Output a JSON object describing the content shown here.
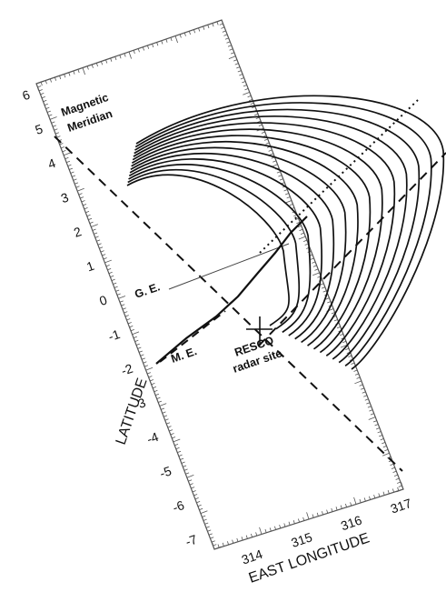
{
  "figure": {
    "axes": {
      "latitude_title": "LATITUDE",
      "longitude_title": "EAST LONGITUDE",
      "latitude_ticks": [
        "6",
        "5",
        "4",
        "3",
        "2",
        "1",
        "0",
        "-1",
        "-2",
        "-3",
        "-4",
        "-5",
        "-6",
        "-7"
      ],
      "longitude_ticks": [
        "314",
        "315",
        "316",
        "317"
      ]
    },
    "annotations": {
      "magnetic_meridian_line1": "Magnetic",
      "magnetic_meridian_line2": "Meridian",
      "geographic_equator": "G. E.",
      "magnetic_equator": "M. E.",
      "radar_line1": "RESCO",
      "radar_line2": "radar site"
    },
    "colors": {
      "ink": "#111111",
      "frame": "#555555",
      "background": "#ffffff"
    }
  }
}
